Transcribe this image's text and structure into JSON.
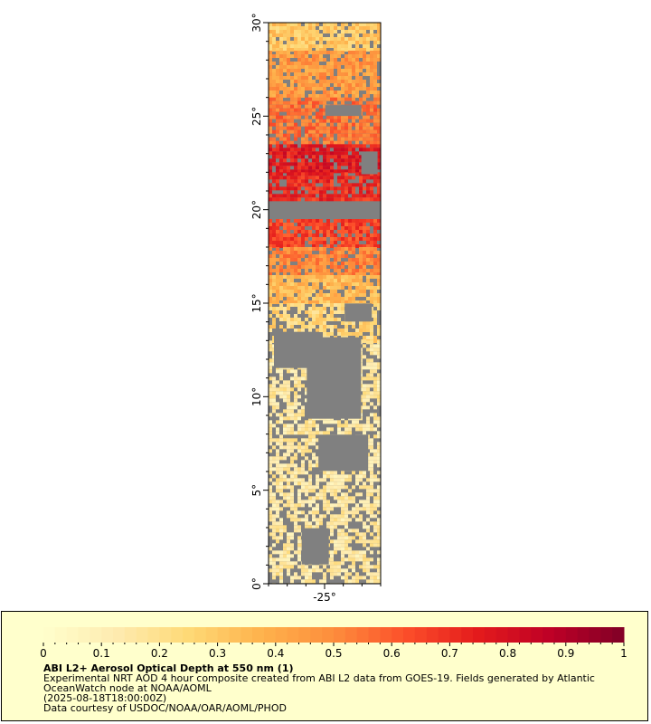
{
  "map": {
    "latitude_axis": {
      "ticks": [
        {
          "value": 0,
          "label": "0°"
        },
        {
          "value": 5,
          "label": "5°"
        },
        {
          "value": 10,
          "label": "10°"
        },
        {
          "value": 15,
          "label": "15°"
        },
        {
          "value": 20,
          "label": "20°"
        },
        {
          "value": 25,
          "label": "25°"
        },
        {
          "value": 30,
          "label": "30°"
        }
      ],
      "range": [
        0,
        30
      ]
    },
    "longitude_axis": {
      "ticks": [
        {
          "value": -25,
          "label": "-25°"
        }
      ],
      "range": [
        -28,
        -22
      ]
    },
    "colors": {
      "no_data": "#808080",
      "scale": [
        "#ffffcc",
        "#feebb0",
        "#fed976",
        "#feb24c",
        "#fd8d3c",
        "#fc4e2a",
        "#e31a1c",
        "#bd0026",
        "#800026"
      ]
    },
    "aod_bands": [
      {
        "lat_from": 28.5,
        "lat_to": 30,
        "aod": 0.3
      },
      {
        "lat_from": 26,
        "lat_to": 28.5,
        "aod": 0.45
      },
      {
        "lat_from": 23.5,
        "lat_to": 26,
        "aod": 0.55
      },
      {
        "lat_from": 22,
        "lat_to": 23.5,
        "aod": 0.75
      },
      {
        "lat_from": 20.5,
        "lat_to": 22,
        "aod": 0.7
      },
      {
        "lat_from": 19.5,
        "lat_to": 20.5,
        "aod": null
      },
      {
        "lat_from": 18,
        "lat_to": 19.5,
        "aod": 0.65
      },
      {
        "lat_from": 16.5,
        "lat_to": 18,
        "aod": 0.5
      },
      {
        "lat_from": 15,
        "lat_to": 16.5,
        "aod": 0.35
      },
      {
        "lat_from": 13,
        "lat_to": 15,
        "aod": 0.25
      },
      {
        "lat_from": 0,
        "lat_to": 13,
        "aod": 0.15
      }
    ]
  },
  "legend": {
    "colorbar": {
      "min": 0,
      "max": 1,
      "steps": 50,
      "labels": [
        "0",
        "0.1",
        "0.2",
        "0.3",
        "0.4",
        "0.5",
        "0.6",
        "0.7",
        "0.8",
        "0.9",
        "1"
      ]
    },
    "title": "ABI L2+ Aerosol Optical Depth at 550 nm (1)",
    "line1": "Experimental NRT AOD 4 hour composite created from ABI L2 data from GOES-19. Fields generated by Atlantic",
    "line2": "OceanWatch node at NOAA/AOML",
    "line3": "(2025-08-18T18:00:00Z)",
    "line4": "Data courtesy of USDOC/NOAA/OAR/AOML/PHOD"
  }
}
